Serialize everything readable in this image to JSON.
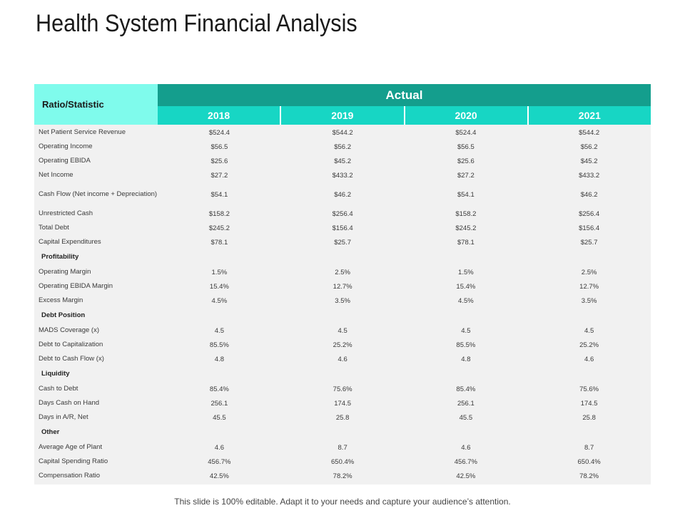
{
  "title": "Health System Financial Analysis",
  "table": {
    "ratio_header": "Ratio/Statistic",
    "actual_header": "Actual",
    "years": [
      "2018",
      "2019",
      "2020",
      "2021"
    ],
    "rows": [
      {
        "kind": "data",
        "label": "Net Patient Service Revenue",
        "values": [
          "$524.4",
          "$544.2",
          "$524.4",
          "$544.2"
        ]
      },
      {
        "kind": "data",
        "label": "Operating Income",
        "values": [
          "$56.5",
          "$56.2",
          "$56.5",
          "$56.2"
        ]
      },
      {
        "kind": "data",
        "label": "Operating EBIDA",
        "values": [
          "$25.6",
          "$45.2",
          "$25.6",
          "$45.2"
        ]
      },
      {
        "kind": "data",
        "label": "Net Income",
        "values": [
          "$27.2",
          "$433.2",
          "$27.2",
          "$433.2"
        ]
      },
      {
        "kind": "tall",
        "label": "Cash Flow (Net income + Depreciation)",
        "values": [
          "$54.1",
          "$46.2",
          "$54.1",
          "$46.2"
        ]
      },
      {
        "kind": "data",
        "label": "Unrestricted Cash",
        "values": [
          "$158.2",
          "$256.4",
          "$158.2",
          "$256.4"
        ]
      },
      {
        "kind": "data",
        "label": "Total Debt",
        "values": [
          "$245.2",
          "$156.4",
          "$245.2",
          "$156.4"
        ]
      },
      {
        "kind": "data",
        "label": "Capital Expenditures",
        "values": [
          "$78.1",
          "$25.7",
          "$78.1",
          "$25.7"
        ]
      },
      {
        "kind": "section",
        "label": "Profitability"
      },
      {
        "kind": "data",
        "label": "Operating Margin",
        "values": [
          "1.5%",
          "2.5%",
          "1.5%",
          "2.5%"
        ]
      },
      {
        "kind": "data",
        "label": "Operating EBIDA Margin",
        "values": [
          "15.4%",
          "12.7%",
          "15.4%",
          "12.7%"
        ]
      },
      {
        "kind": "data",
        "label": "Excess Margin",
        "values": [
          "4.5%",
          "3.5%",
          "4.5%",
          "3.5%"
        ]
      },
      {
        "kind": "section",
        "label": "Debt Position"
      },
      {
        "kind": "data",
        "label": "MADS Coverage (x)",
        "values": [
          "4.5",
          "4.5",
          "4.5",
          "4.5"
        ]
      },
      {
        "kind": "data",
        "label": "Debt to Capitalization",
        "values": [
          "85.5%",
          "25.2%",
          "85.5%",
          "25.2%"
        ]
      },
      {
        "kind": "data",
        "label": "Debt to Cash Flow (x)",
        "values": [
          "4.8",
          "4.6",
          "4.8",
          "4.6"
        ]
      },
      {
        "kind": "section",
        "label": "Liquidity"
      },
      {
        "kind": "data",
        "label": "Cash to Debt",
        "values": [
          "85.4%",
          "75.6%",
          "85.4%",
          "75.6%"
        ]
      },
      {
        "kind": "data",
        "label": "Days Cash on Hand",
        "values": [
          "256.1",
          "174.5",
          "256.1",
          "174.5"
        ]
      },
      {
        "kind": "data",
        "label": "Days in A/R, Net",
        "values": [
          "45.5",
          "25.8",
          "45.5",
          "25.8"
        ]
      },
      {
        "kind": "section",
        "label": "Other"
      },
      {
        "kind": "data",
        "label": "Average Age of Plant",
        "values": [
          "4.6",
          "8.7",
          "4.6",
          "8.7"
        ]
      },
      {
        "kind": "data",
        "label": "Capital Spending Ratio",
        "values": [
          "456.7%",
          "650.4%",
          "456.7%",
          "650.4%"
        ]
      },
      {
        "kind": "data",
        "label": "Compensation Ratio",
        "values": [
          "42.5%",
          "78.2%",
          "42.5%",
          "78.2%"
        ]
      }
    ]
  },
  "footer": "This slide is 100% editable. Adapt it to your needs and capture your audience’s attention.",
  "colors": {
    "ratio_header_bg": "#7ffbec",
    "actual_header_bg": "#149e8d",
    "year_header_bg": "#17d6c4",
    "body_bg": "#f1f1f1"
  }
}
